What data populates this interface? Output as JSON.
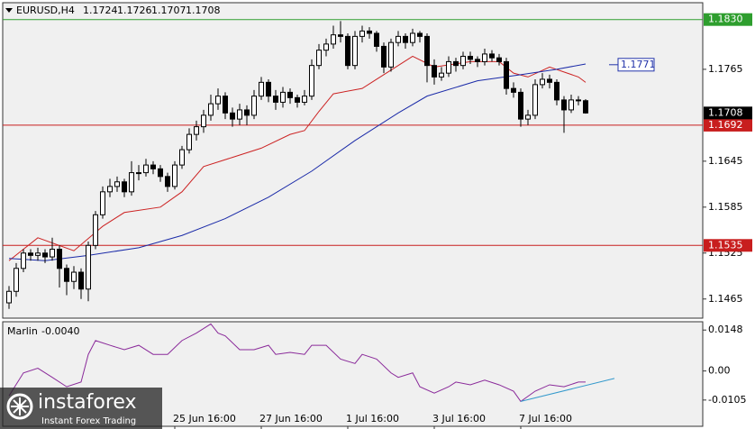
{
  "chart_data": {
    "type": "candlestick",
    "symbol": "EURUSD,H4",
    "ylim": [
      1.144,
      1.1852
    ],
    "yticks": [
      1.1465,
      1.1525,
      1.1585,
      1.1645,
      1.1765
    ],
    "xticks": [
      {
        "value": 23,
        "label": "25 Jun 16:00"
      },
      {
        "value": 35,
        "label": "27 Jun 16:00"
      },
      {
        "value": 47,
        "label": "1 Jul 16:00"
      },
      {
        "value": 59,
        "label": "3 Jul 16:00"
      },
      {
        "value": 71,
        "label": "7 Jul 16:00"
      }
    ],
    "ohlc": [
      [
        1.146,
        1.1482,
        1.1452,
        1.1475
      ],
      [
        1.1475,
        1.1512,
        1.1468,
        1.1505
      ],
      [
        1.1505,
        1.153,
        1.15,
        1.1525
      ],
      [
        1.1525,
        1.153,
        1.1515,
        1.1522
      ],
      [
        1.1522,
        1.1532,
        1.1515,
        1.1525
      ],
      [
        1.1525,
        1.153,
        1.1512,
        1.152
      ],
      [
        1.152,
        1.1545,
        1.1515,
        1.153
      ],
      [
        1.153,
        1.1535,
        1.148,
        1.1505
      ],
      [
        1.1505,
        1.151,
        1.147,
        1.1488
      ],
      [
        1.1488,
        1.1508,
        1.1478,
        1.15
      ],
      [
        1.15,
        1.1505,
        1.1465,
        1.1478
      ],
      [
        1.1478,
        1.154,
        1.1462,
        1.1535
      ],
      [
        1.1535,
        1.158,
        1.153,
        1.1575
      ],
      [
        1.1575,
        1.1612,
        1.157,
        1.1605
      ],
      [
        1.1605,
        1.1622,
        1.1598,
        1.1612
      ],
      [
        1.1612,
        1.1625,
        1.1605,
        1.1618
      ],
      [
        1.1618,
        1.1622,
        1.1598,
        1.1605
      ],
      [
        1.1605,
        1.1645,
        1.16,
        1.163
      ],
      [
        1.163,
        1.164,
        1.162,
        1.163
      ],
      [
        1.163,
        1.1648,
        1.1625,
        1.164
      ],
      [
        1.164,
        1.1645,
        1.1628,
        1.1635
      ],
      [
        1.1635,
        1.164,
        1.1618,
        1.1625
      ],
      [
        1.1625,
        1.163,
        1.1605,
        1.1612
      ],
      [
        1.1612,
        1.1645,
        1.1608,
        1.164
      ],
      [
        1.164,
        1.1665,
        1.1635,
        1.166
      ],
      [
        1.166,
        1.1688,
        1.1655,
        1.168
      ],
      [
        1.168,
        1.1698,
        1.1672,
        1.169
      ],
      [
        1.169,
        1.1712,
        1.1682,
        1.1705
      ],
      [
        1.1705,
        1.1732,
        1.1698,
        1.172
      ],
      [
        1.172,
        1.174,
        1.1712,
        1.173
      ],
      [
        1.173,
        1.1735,
        1.17,
        1.1708
      ],
      [
        1.1708,
        1.1715,
        1.169,
        1.17
      ],
      [
        1.17,
        1.172,
        1.1692,
        1.1712
      ],
      [
        1.1712,
        1.1718,
        1.1692,
        1.1705
      ],
      [
        1.1705,
        1.1738,
        1.17,
        1.173
      ],
      [
        1.173,
        1.1755,
        1.1725,
        1.1748
      ],
      [
        1.1748,
        1.1752,
        1.1722,
        1.173
      ],
      [
        1.173,
        1.1738,
        1.1712,
        1.1722
      ],
      [
        1.1722,
        1.1742,
        1.1715,
        1.1735
      ],
      [
        1.1735,
        1.174,
        1.172,
        1.1728
      ],
      [
        1.1728,
        1.1732,
        1.1715,
        1.1722
      ],
      [
        1.1722,
        1.1738,
        1.1718,
        1.173
      ],
      [
        1.173,
        1.1778,
        1.1725,
        1.177
      ],
      [
        1.177,
        1.1798,
        1.1765,
        1.179
      ],
      [
        1.179,
        1.1805,
        1.1782,
        1.1798
      ],
      [
        1.1798,
        1.1822,
        1.1792,
        1.181
      ],
      [
        1.181,
        1.1828,
        1.18,
        1.1808
      ],
      [
        1.1808,
        1.1812,
        1.1765,
        1.177
      ],
      [
        1.177,
        1.1815,
        1.1765,
        1.1808
      ],
      [
        1.1808,
        1.1822,
        1.18,
        1.1815
      ],
      [
        1.1815,
        1.182,
        1.1805,
        1.1812
      ],
      [
        1.1812,
        1.1815,
        1.1788,
        1.1795
      ],
      [
        1.1795,
        1.18,
        1.176,
        1.1768
      ],
      [
        1.1768,
        1.1805,
        1.1762,
        1.18
      ],
      [
        1.18,
        1.1815,
        1.1795,
        1.1808
      ],
      [
        1.1808,
        1.1812,
        1.1792,
        1.18
      ],
      [
        1.18,
        1.1818,
        1.1795,
        1.1812
      ],
      [
        1.1812,
        1.1815,
        1.18,
        1.1808
      ],
      [
        1.1808,
        1.1812,
        1.1748,
        1.177
      ],
      [
        1.177,
        1.1778,
        1.1745,
        1.1755
      ],
      [
        1.1755,
        1.1768,
        1.175,
        1.176
      ],
      [
        1.176,
        1.1782,
        1.1755,
        1.1775
      ],
      [
        1.1775,
        1.178,
        1.1762,
        1.177
      ],
      [
        1.177,
        1.1788,
        1.1765,
        1.1782
      ],
      [
        1.1782,
        1.1788,
        1.1772,
        1.1778
      ],
      [
        1.1778,
        1.1782,
        1.1768,
        1.1775
      ],
      [
        1.1775,
        1.1792,
        1.177,
        1.1785
      ],
      [
        1.1785,
        1.179,
        1.1775,
        1.178
      ],
      [
        1.178,
        1.1785,
        1.177,
        1.1775
      ],
      [
        1.1775,
        1.178,
        1.1732,
        1.174
      ],
      [
        1.174,
        1.1748,
        1.1728,
        1.1735
      ],
      [
        1.1735,
        1.174,
        1.169,
        1.17
      ],
      [
        1.17,
        1.1712,
        1.1692,
        1.1705
      ],
      [
        1.1705,
        1.1752,
        1.17,
        1.1745
      ],
      [
        1.1745,
        1.176,
        1.174,
        1.1752
      ],
      [
        1.1752,
        1.1758,
        1.174,
        1.1748
      ],
      [
        1.1748,
        1.1752,
        1.1718,
        1.1725
      ],
      [
        1.1725,
        1.173,
        1.1682,
        1.1712
      ],
      [
        1.1712,
        1.1732,
        1.1708,
        1.1725
      ],
      [
        1.1725,
        1.173,
        1.1718,
        1.1724
      ],
      [
        1.1724,
        1.1726,
        1.1707,
        1.1708
      ]
    ],
    "averages": [
      {
        "color": "#cc2222",
        "x": [
          0,
          4,
          9,
          13,
          16,
          21,
          24,
          27,
          31,
          35,
          39,
          41,
          43,
          45,
          49,
          51,
          54,
          56,
          59,
          64,
          68,
          70,
          72,
          75,
          79,
          80
        ],
        "values": [
          1.1515,
          1.1545,
          1.1528,
          1.156,
          1.1578,
          1.1585,
          1.1605,
          1.1638,
          1.165,
          1.1662,
          1.168,
          1.1685,
          1.171,
          1.1733,
          1.174,
          1.1752,
          1.177,
          1.1782,
          1.1768,
          1.1775,
          1.1775,
          1.176,
          1.1755,
          1.1768,
          1.1755,
          1.1748
        ]
      },
      {
        "color": "#1a2aa8",
        "x": [
          0,
          5,
          11,
          18,
          24,
          30,
          36,
          42,
          48,
          54,
          58,
          65,
          71,
          76,
          80
        ],
        "values": [
          1.1518,
          1.1515,
          1.1522,
          1.1532,
          1.1548,
          1.157,
          1.1598,
          1.1632,
          1.1672,
          1.1708,
          1.173,
          1.175,
          1.1758,
          1.1765,
          1.1772
        ]
      }
    ],
    "levels": [
      {
        "price": 1.183,
        "label": "1.1830",
        "color": "#2e9e2e"
      },
      {
        "price": 1.1692,
        "color": "#c81e1e"
      },
      {
        "price": 1.1535,
        "color": "#c81e1e"
      }
    ],
    "price_label": {
      "price": 1.1771,
      "color": "#2233aa"
    },
    "indicator": {
      "name": "Marlin",
      "value_label": "-0.0040",
      "color": "#8a2a9a",
      "ylim": [
        -0.02,
        0.0178
      ],
      "yticks": [
        -0.0105,
        {
          "value": 0,
          "label": "0.00"
        },
        0.0148
      ],
      "x": [
        0,
        2,
        4,
        6,
        8,
        10,
        11,
        12,
        14,
        16,
        18,
        20,
        22,
        24,
        26,
        28,
        29,
        30,
        32,
        34,
        36,
        37,
        39,
        41,
        42,
        44,
        46,
        48,
        49,
        51,
        53,
        54,
        56,
        57,
        59,
        61,
        62,
        64,
        66,
        68,
        70,
        71,
        73,
        75,
        77,
        79,
        80
      ],
      "values": [
        -0.009,
        -0.0007,
        0.001,
        -0.0023,
        -0.0057,
        -0.004,
        0.006,
        0.011,
        0.0093,
        0.0077,
        0.0093,
        0.006,
        0.006,
        0.011,
        0.0137,
        0.017,
        0.0137,
        0.0127,
        0.0077,
        0.0077,
        0.0093,
        0.006,
        0.0067,
        0.006,
        0.0093,
        0.0093,
        0.0043,
        0.0027,
        0.006,
        0.0043,
        -0.0007,
        -0.0023,
        -0.0007,
        -0.0057,
        -0.008,
        -0.0057,
        -0.004,
        -0.005,
        -0.0033,
        -0.005,
        -0.0073,
        -0.011,
        -0.0073,
        -0.005,
        -0.0057,
        -0.004,
        -0.004
      ],
      "trendline": {
        "color": "#3399cc",
        "x": [
          71,
          84
        ],
        "values": [
          -0.011,
          -0.0027
        ]
      }
    },
    "watermark": {
      "title": "instaforex",
      "subtitle": "Instant Forex Trading"
    }
  }
}
